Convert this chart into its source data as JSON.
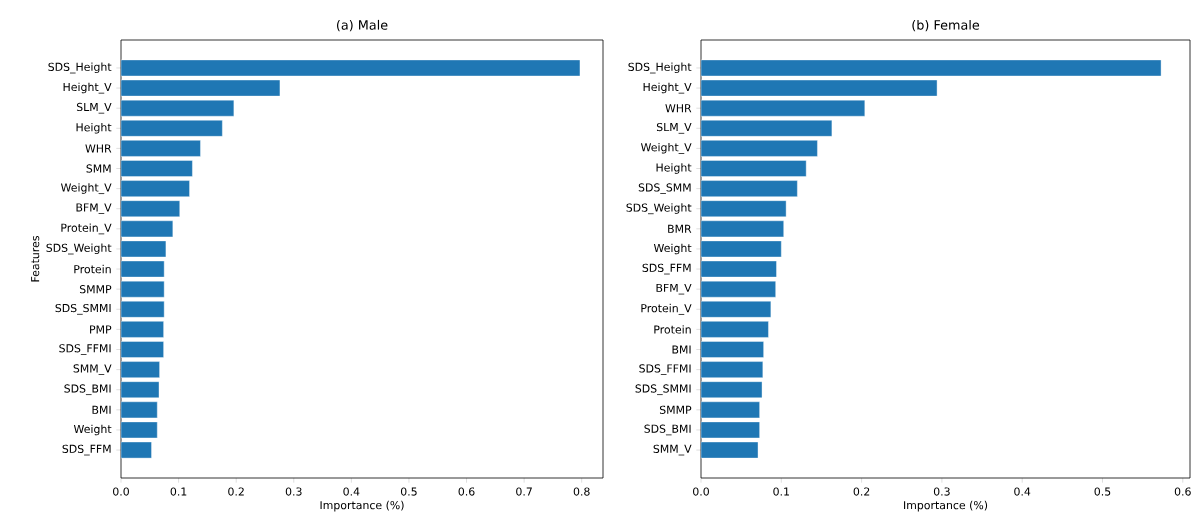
{
  "chart_data": [
    {
      "type": "bar",
      "title": "(a) Male",
      "xlabel": "Importance (%)",
      "ylabel": "Features",
      "orientation": "horizontal",
      "categories": [
        "SDS_Height",
        "Height_V",
        "SLM_V",
        "Height",
        "WHR",
        "SMM",
        "Weight_V",
        "BFM_V",
        "Protein_V",
        "SDS_Weight",
        "Protein",
        "SMMP",
        "SDS_SMMI",
        "PMP",
        "SDS_FFMI",
        "SMM_V",
        "SDS_BMI",
        "BMI",
        "Weight",
        "SDS_FFM"
      ],
      "values": [
        0.797,
        0.276,
        0.196,
        0.176,
        0.138,
        0.124,
        0.119,
        0.102,
        0.09,
        0.078,
        0.075,
        0.075,
        0.075,
        0.074,
        0.074,
        0.067,
        0.066,
        0.063,
        0.063,
        0.053
      ],
      "color": "#1f77b4",
      "xlim": [
        0,
        0.837
      ],
      "xticks": [
        {
          "value": 0,
          "label": "0.0"
        },
        0.1,
        0.2,
        0.3,
        0.4,
        0.5,
        0.6,
        0.7,
        0.8
      ]
    },
    {
      "type": "bar",
      "title": "(b) Female",
      "xlabel": "Importance (%)",
      "orientation": "horizontal",
      "categories": [
        "SDS_Height",
        "Height_V",
        "WHR",
        "SLM_V",
        "Weight_V",
        "Height",
        "SDS_SMM",
        "SDS_Weight",
        "BMR",
        "Weight",
        "SDS_FFM",
        "BFM_V",
        "Protein_V",
        "Protein",
        "BMI",
        "SDS_FFMI",
        "SDS_SMMI",
        "SMMP",
        "SDS_BMI",
        "SMM_V"
      ],
      "values": [
        0.573,
        0.294,
        0.204,
        0.163,
        0.145,
        0.131,
        0.12,
        0.106,
        0.103,
        0.1,
        0.094,
        0.093,
        0.087,
        0.084,
        0.078,
        0.077,
        0.076,
        0.073,
        0.073,
        0.071
      ],
      "color": "#1f77b4",
      "xlim": [
        0,
        0.609
      ],
      "xticks": [
        {
          "value": 0,
          "label": "0.0"
        },
        0.1,
        0.2,
        0.3,
        0.4,
        0.5,
        0.6
      ]
    }
  ]
}
